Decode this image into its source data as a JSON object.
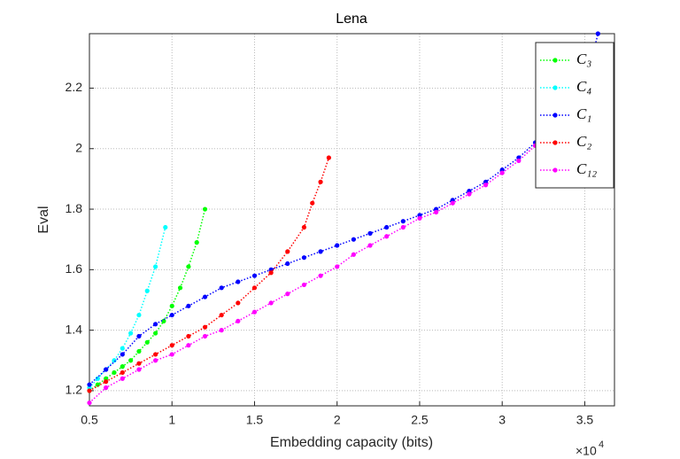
{
  "chart_data": {
    "type": "line",
    "title": "Lena",
    "x_label": "Embedding capacity (bits)",
    "y_label": "Eval",
    "x_multiplier": {
      "base": "×10",
      "exponent": "4"
    },
    "xlim": [
      5000,
      36800
    ],
    "ylim": [
      1.15,
      2.38
    ],
    "xticks": [
      {
        "value": 5000,
        "label": "0.5"
      },
      {
        "value": 10000,
        "label": "1"
      },
      {
        "value": 15000,
        "label": "1.5"
      },
      {
        "value": 20000,
        "label": "2"
      },
      {
        "value": 25000,
        "label": "2.5"
      },
      {
        "value": 30000,
        "label": "3"
      },
      {
        "value": 35000,
        "label": "3.5"
      }
    ],
    "yticks": [
      1.2,
      1.4,
      1.6,
      1.8,
      2,
      2.2
    ],
    "grid": true,
    "legend": "northeast",
    "series": [
      {
        "name": "C₃",
        "color": "#00ff00",
        "x": [
          5000,
          5500,
          6000,
          6500,
          7000,
          7500,
          8000,
          8500,
          9000,
          9500,
          10000,
          10500,
          11000,
          11500,
          12000
        ],
        "values": [
          1.2,
          1.22,
          1.24,
          1.26,
          1.28,
          1.3,
          1.33,
          1.36,
          1.39,
          1.43,
          1.48,
          1.54,
          1.61,
          1.69,
          1.8
        ]
      },
      {
        "name": "C₄",
        "color": "#00ffff",
        "x": [
          5000,
          5500,
          6000,
          6500,
          7000,
          7500,
          8000,
          8500,
          9000,
          9600
        ],
        "values": [
          1.21,
          1.24,
          1.27,
          1.3,
          1.34,
          1.39,
          1.45,
          1.53,
          1.61,
          1.74
        ]
      },
      {
        "name": "C₁",
        "color": "#0000ff",
        "x": [
          5000,
          6000,
          7000,
          8000,
          9000,
          10000,
          11000,
          12000,
          13000,
          14000,
          15000,
          16000,
          17000,
          18000,
          19000,
          20000,
          21000,
          22000,
          23000,
          24000,
          25000,
          26000,
          27000,
          28000,
          29000,
          30000,
          31000,
          32000,
          33000,
          34000,
          35000,
          35800
        ],
        "values": [
          1.22,
          1.27,
          1.32,
          1.38,
          1.42,
          1.45,
          1.48,
          1.51,
          1.54,
          1.56,
          1.58,
          1.6,
          1.62,
          1.64,
          1.66,
          1.68,
          1.7,
          1.72,
          1.74,
          1.76,
          1.78,
          1.8,
          1.83,
          1.86,
          1.89,
          1.93,
          1.97,
          2.02,
          2.06,
          2.11,
          2.2,
          2.38
        ]
      },
      {
        "name": "C₂",
        "color": "#ff0000",
        "x": [
          5000,
          6000,
          7000,
          8000,
          9000,
          10000,
          11000,
          12000,
          13000,
          14000,
          15000,
          16000,
          17000,
          18000,
          18500,
          19000,
          19500
        ],
        "values": [
          1.2,
          1.23,
          1.26,
          1.29,
          1.32,
          1.35,
          1.38,
          1.41,
          1.45,
          1.49,
          1.54,
          1.59,
          1.66,
          1.74,
          1.82,
          1.89,
          1.97
        ]
      },
      {
        "name": "C₁₂",
        "color": "#ff00ff",
        "x": [
          5000,
          6000,
          7000,
          8000,
          9000,
          10000,
          11000,
          12000,
          13000,
          14000,
          15000,
          16000,
          17000,
          18000,
          19000,
          20000,
          21000,
          22000,
          23000,
          24000,
          25000,
          26000,
          27000,
          28000,
          29000,
          30000,
          31000,
          32000
        ],
        "values": [
          1.16,
          1.21,
          1.24,
          1.27,
          1.3,
          1.32,
          1.35,
          1.38,
          1.4,
          1.43,
          1.46,
          1.49,
          1.52,
          1.55,
          1.58,
          1.61,
          1.65,
          1.68,
          1.71,
          1.74,
          1.77,
          1.79,
          1.82,
          1.85,
          1.88,
          1.92,
          1.96,
          2.01
        ]
      }
    ]
  }
}
